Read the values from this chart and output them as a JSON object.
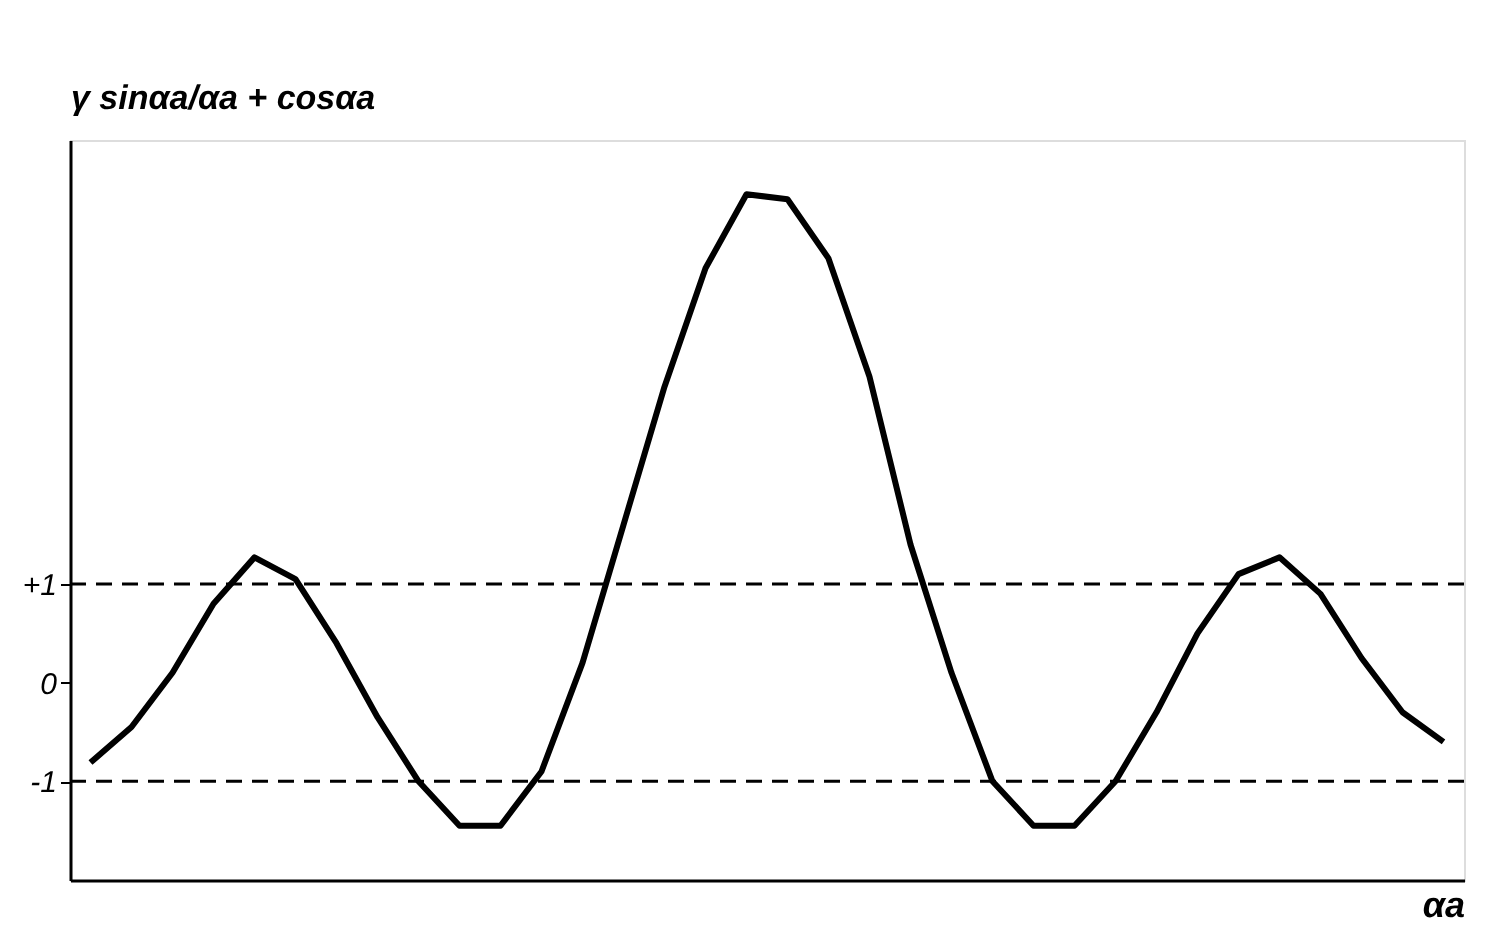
{
  "chart_data": {
    "type": "line",
    "ylabel": "γ sinαa/αa + cosαa",
    "xlabel": "αa",
    "categories": [
      null,
      null,
      null,
      null,
      null,
      null,
      null,
      null,
      null,
      null,
      null,
      null,
      null,
      null,
      null,
      null,
      null,
      null,
      null,
      null,
      null,
      null,
      null,
      null,
      null,
      null,
      null,
      null,
      null,
      null,
      null,
      null,
      null,
      null
    ],
    "series": [
      {
        "color": "#000000",
        "values": [
          -0.81,
          -0.45,
          0.1,
          0.8,
          1.27,
          1.05,
          0.4,
          -0.35,
          -1.0,
          -1.45,
          -1.45,
          -0.9,
          0.2,
          1.6,
          3.0,
          4.2,
          4.95,
          4.9,
          4.3,
          3.1,
          1.4,
          0.1,
          -1.0,
          -1.45,
          -1.45,
          -1.0,
          -0.3,
          0.5,
          1.1,
          1.27,
          0.9,
          0.25,
          -0.3,
          -0.6
        ]
      }
    ],
    "ylim": [
      -2,
      5.5
    ],
    "yticks": [
      {
        "value": 1,
        "label": "+1"
      },
      0,
      -1
    ],
    "ref_lines": [
      {
        "axis": "y",
        "value": 1,
        "line_style": "dashed",
        "color": "#000000"
      },
      {
        "axis": "y",
        "value": -1,
        "line_style": "dashed",
        "color": "#000000"
      }
    ],
    "tick_labels": "y",
    "grid": false,
    "marker": "none",
    "line_style": "solid"
  }
}
